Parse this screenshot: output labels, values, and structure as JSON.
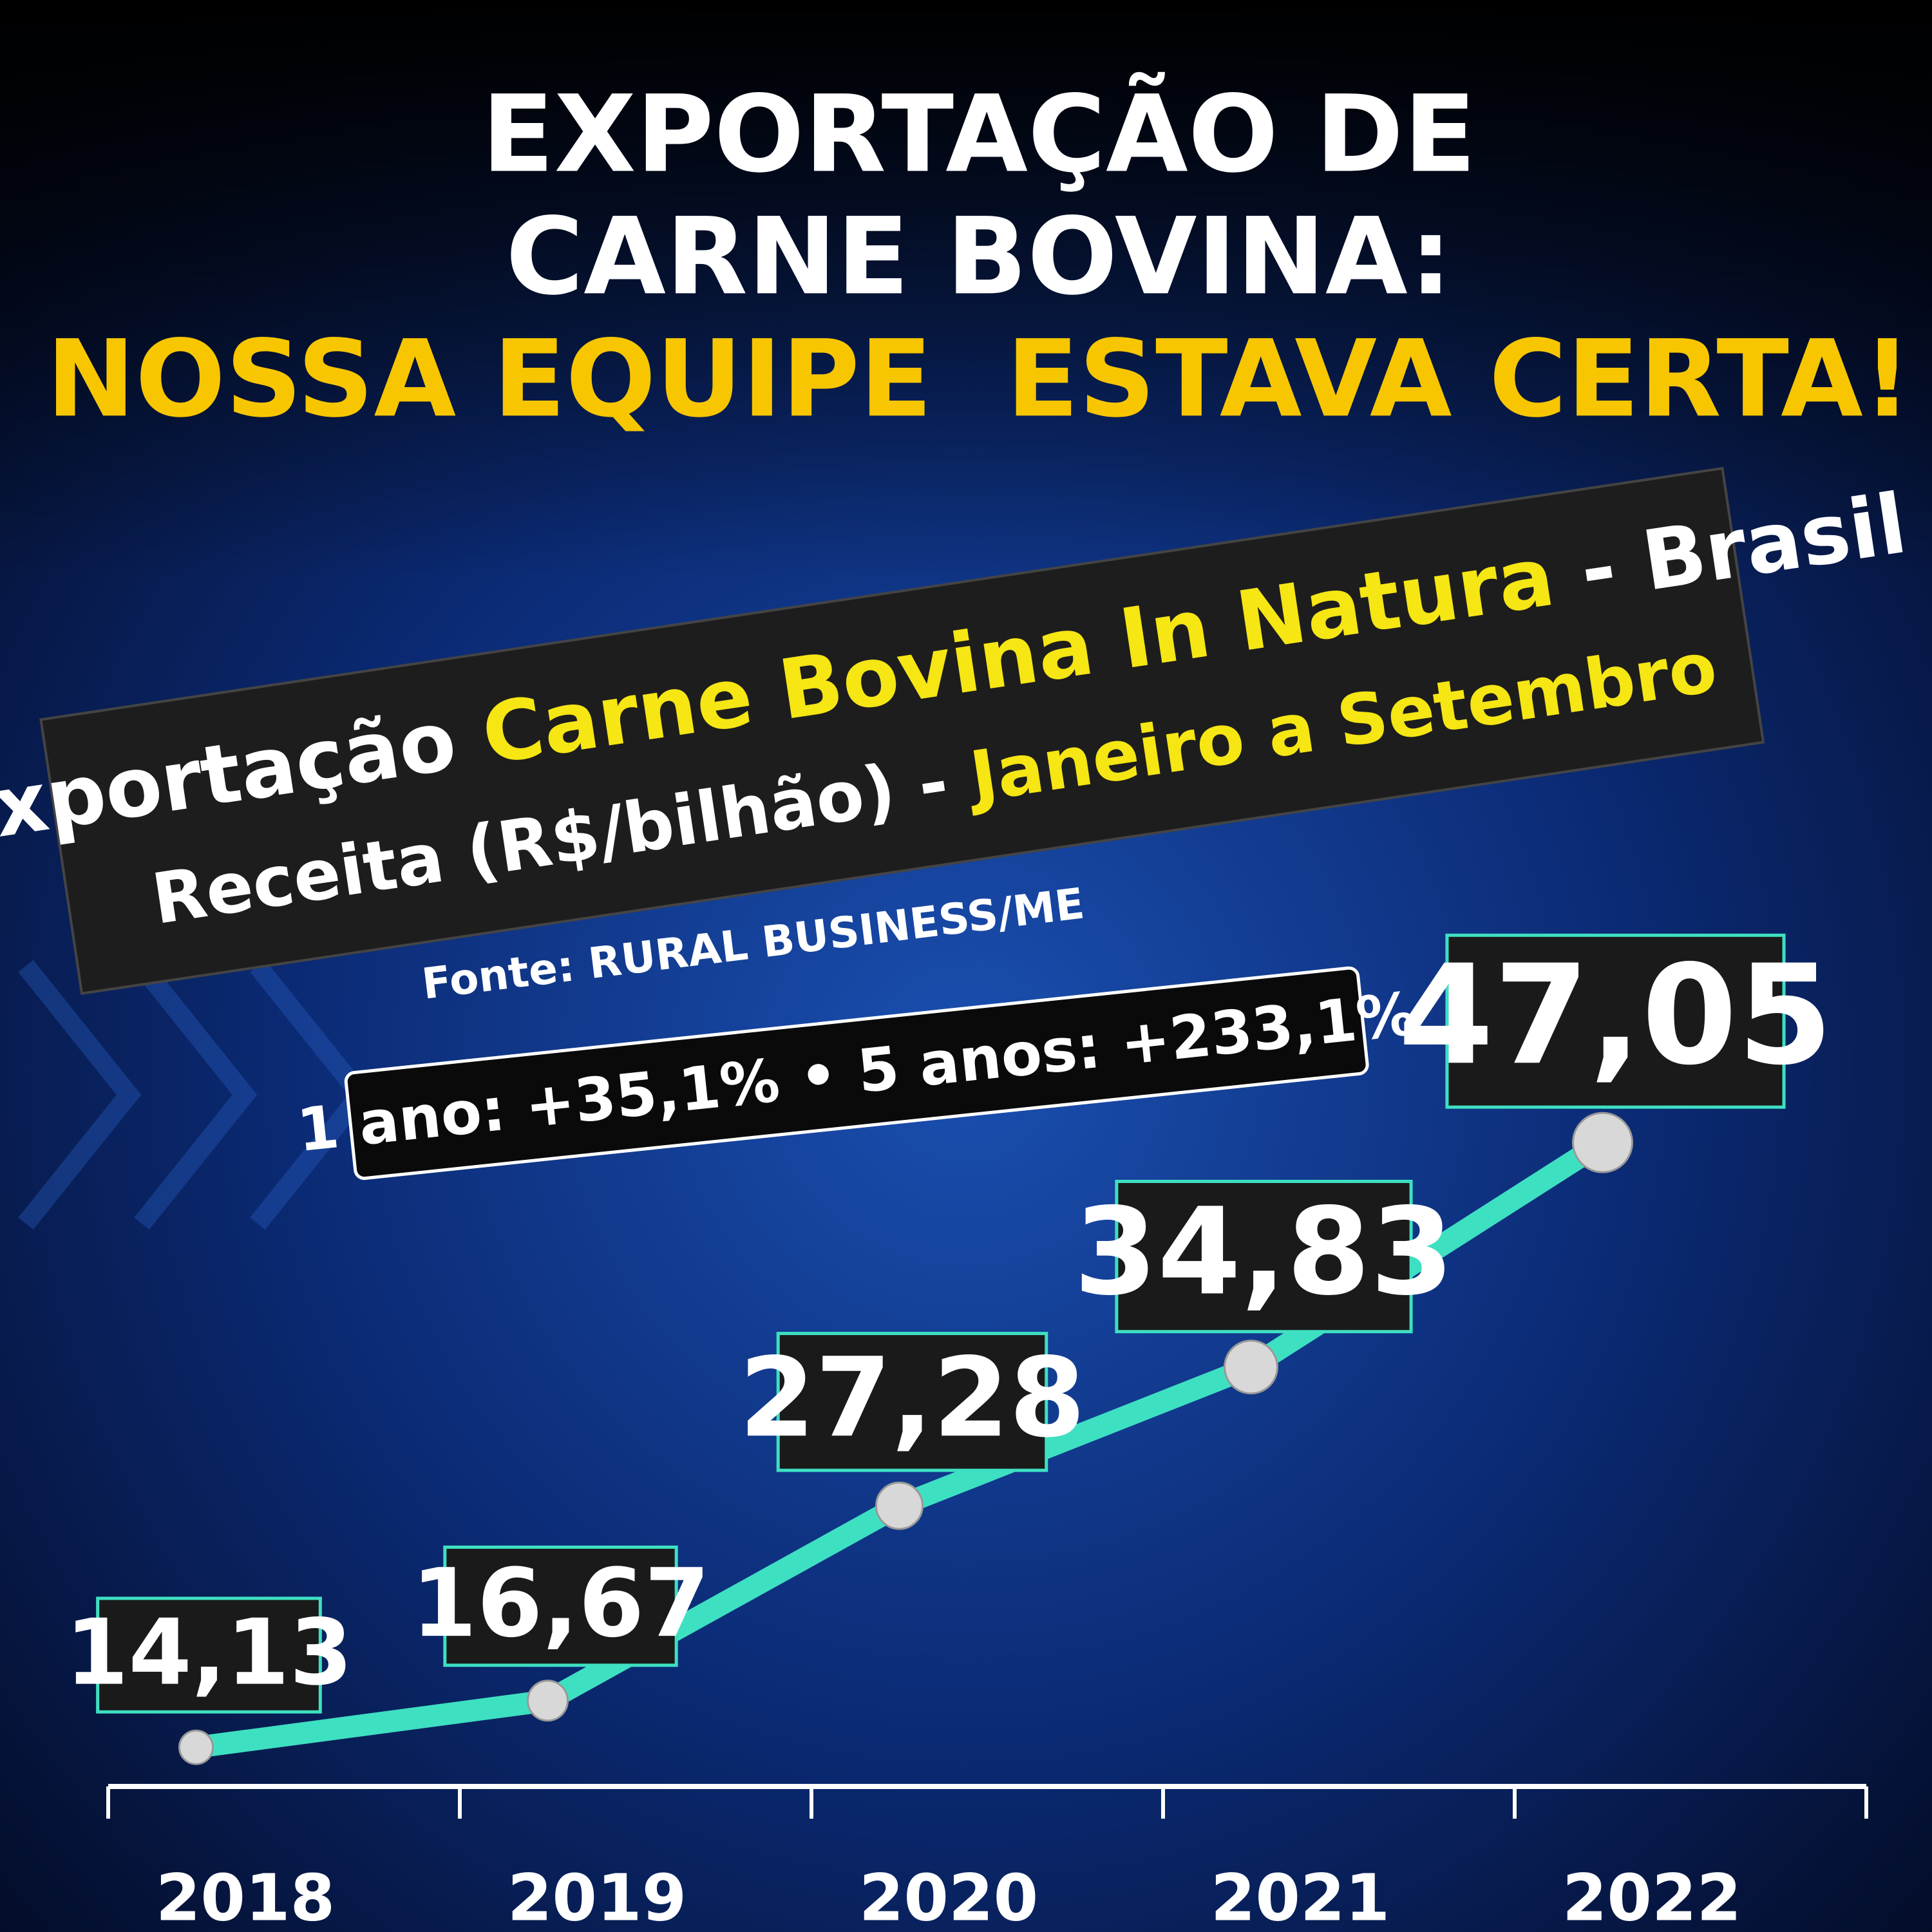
{
  "headline": [
    "EXPORTAÇÃO DE",
    "CARNE BOVINA:"
  ],
  "headline_highlight": "NOSSA EQUIPE  ESTAVA CERTA!",
  "chart_data": {
    "type": "line",
    "title": [
      "Exportação ",
      "Carne Bovina In Natura",
      " - Brasil"
    ],
    "subtitle": [
      "Receita (R$/bilhão) - ",
      "Janeiro a Setembro"
    ],
    "source": "Fonte: RURAL BUSINESS/ME",
    "annotation": "1 ano: +35,1% • 5 anos: +233,1%",
    "categories": [
      "2018",
      "2019",
      "2020",
      "2021",
      "2022"
    ],
    "values": [
      14.13,
      16.67,
      27.28,
      34.83,
      47.05
    ],
    "value_labels": [
      "14,13",
      "16,67",
      "27,28",
      "34,83",
      "47,05"
    ],
    "color": "#3ee0c2",
    "ylim": [
      12,
      50
    ]
  }
}
